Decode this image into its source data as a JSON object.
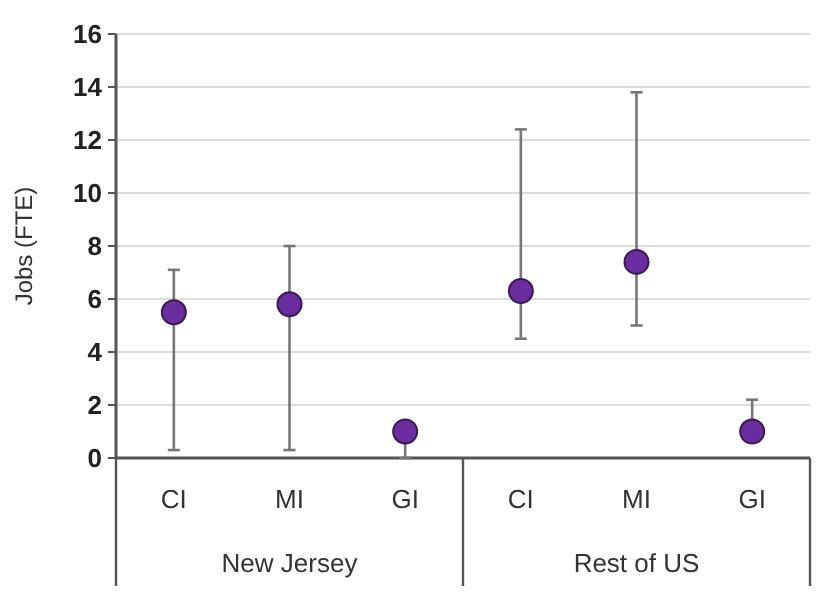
{
  "chart_data": {
    "type": "scatter",
    "ylabel": "Jobs (FTE)",
    "categories": [
      "CI",
      "MI",
      "GI",
      "CI",
      "MI",
      "GI"
    ],
    "annotations": [
      "New Jersey",
      "Rest of US"
    ],
    "series": [
      {
        "color": "#6b2c9f",
        "values": [
          5.5,
          5.8,
          1.0,
          6.3,
          7.4,
          1.0
        ],
        "errors": [
          [
            0.3,
            7.1
          ],
          [
            0.3,
            8.0
          ],
          [
            0,
            1.3
          ],
          [
            4.5,
            12.4
          ],
          [
            5.0,
            13.8
          ],
          [
            0.7,
            2.2
          ]
        ]
      }
    ],
    "ylim": [
      0,
      16
    ],
    "yticks": [
      0,
      2,
      4,
      6,
      8,
      10,
      12,
      14,
      16
    ],
    "grid": "y",
    "marker": "circle"
  }
}
